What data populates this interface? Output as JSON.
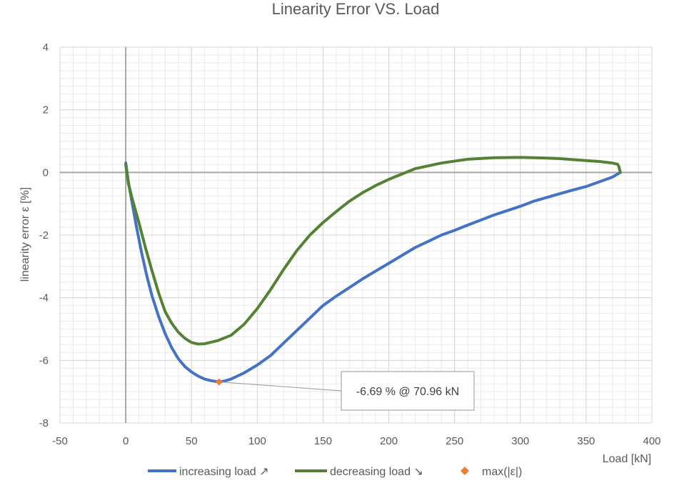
{
  "chart_data": {
    "type": "line",
    "title": "Linearity Error VS. Load",
    "xlabel": "Load [kN]",
    "ylabel": "linearity error ε [%]",
    "xlim": [
      -50,
      400
    ],
    "ylim": [
      -8,
      4
    ],
    "x_ticks": [
      -50,
      0,
      50,
      100,
      150,
      200,
      250,
      300,
      350,
      400
    ],
    "y_ticks": [
      -8,
      -6,
      -4,
      -2,
      0,
      2,
      4
    ],
    "x_tick_labels": [
      "-50",
      "0",
      "50",
      "100",
      "150",
      "200",
      "250",
      "300",
      "350",
      "400"
    ],
    "y_tick_labels": [
      "-8",
      "-6",
      "-4",
      "-2",
      "0",
      "2",
      "4"
    ],
    "minor_gridlines": true,
    "legend_position": "bottom",
    "series": [
      {
        "name": "increasing load ↗",
        "color": "#4472c4",
        "x": [
          0,
          2,
          5,
          8,
          12,
          16,
          20,
          25,
          30,
          35,
          40,
          45,
          50,
          55,
          60,
          65,
          70.96,
          75,
          80,
          90,
          100,
          110,
          120,
          130,
          140,
          150,
          160,
          170,
          180,
          190,
          200,
          210,
          220,
          230,
          240,
          250,
          260,
          270,
          280,
          290,
          300,
          310,
          320,
          330,
          340,
          350,
          360,
          370,
          376
        ],
        "y": [
          0.3,
          -0.3,
          -1.0,
          -1.7,
          -2.55,
          -3.3,
          -3.95,
          -4.6,
          -5.15,
          -5.6,
          -5.95,
          -6.2,
          -6.37,
          -6.5,
          -6.6,
          -6.65,
          -6.69,
          -6.66,
          -6.6,
          -6.4,
          -6.15,
          -5.85,
          -5.45,
          -5.05,
          -4.65,
          -4.25,
          -3.95,
          -3.68,
          -3.4,
          -3.15,
          -2.9,
          -2.65,
          -2.4,
          -2.2,
          -2.0,
          -1.85,
          -1.68,
          -1.52,
          -1.36,
          -1.22,
          -1.08,
          -0.92,
          -0.8,
          -0.68,
          -0.56,
          -0.45,
          -0.3,
          -0.15,
          0.0
        ]
      },
      {
        "name": "decreasing load ↘",
        "color": "#548235",
        "x": [
          376,
          375,
          374,
          370,
          360,
          350,
          340,
          330,
          320,
          300,
          280,
          260,
          240,
          220,
          210,
          200,
          190,
          180,
          170,
          160,
          150,
          140,
          130,
          120,
          110,
          100,
          90,
          80,
          70,
          60,
          55,
          50,
          45,
          40,
          35,
          30,
          25,
          20,
          15,
          10,
          5,
          2,
          0
        ],
        "y": [
          0.0,
          0.18,
          0.26,
          0.3,
          0.35,
          0.38,
          0.41,
          0.44,
          0.46,
          0.48,
          0.47,
          0.42,
          0.3,
          0.12,
          -0.05,
          -0.22,
          -0.42,
          -0.65,
          -0.92,
          -1.25,
          -1.6,
          -2.0,
          -2.5,
          -3.1,
          -3.75,
          -4.35,
          -4.85,
          -5.2,
          -5.37,
          -5.47,
          -5.48,
          -5.43,
          -5.3,
          -5.1,
          -4.82,
          -4.45,
          -3.85,
          -3.15,
          -2.4,
          -1.6,
          -0.85,
          -0.35,
          0.25
        ]
      }
    ],
    "marker": {
      "name": "max(|ε|)",
      "color": "#ed7d31",
      "x": 70.96,
      "y": -6.69,
      "label": "-6.69 % @ 70.96 kN"
    }
  }
}
